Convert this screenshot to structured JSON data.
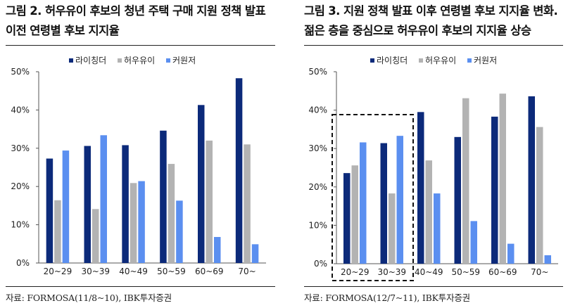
{
  "colors": {
    "series1": "#0c2a7a",
    "series2": "#b3b3b3",
    "series3": "#5b8ff0",
    "axis": "#555555",
    "rule": "#222222"
  },
  "charts": {
    "left": {
      "title_line1": "그림 2.  허우유이 후보의 청년 주택 구매 지원 정책 발표",
      "title_line2": "이전 연령별 후보 지지율",
      "source": "자료: FORMOSA(11/8~10), IBK투자증권"
    },
    "right": {
      "title_line1": "그림 3. 지원 정책 발표 이후 연령별 후보 지지율 변화.",
      "title_line2": "젊은 층을 중심으로 허우유이 후보의 지지율 상승",
      "source": "자료: FORMOSA(12/7~11), IBK투자증권"
    }
  },
  "chart_data": [
    {
      "type": "bar",
      "title": "그림 2.  허우유이 후보의 청년 주택 구매 지원 정책 발표 이전 연령별 후보 지지율",
      "categories": [
        "20~29",
        "30~39",
        "40~49",
        "50~59",
        "60~69",
        "70~"
      ],
      "series": [
        {
          "name": "라이칭더",
          "values": [
            27.3,
            30.6,
            30.8,
            34.6,
            41.3,
            48.3
          ]
        },
        {
          "name": "허우유이",
          "values": [
            16.4,
            14.1,
            20.9,
            25.9,
            32.0,
            31.0
          ]
        },
        {
          "name": "커원저",
          "values": [
            29.4,
            33.4,
            21.4,
            16.3,
            6.8,
            4.9
          ]
        }
      ],
      "ylim": [
        0,
        50
      ],
      "yticks": [
        "0%",
        "10%",
        "20%",
        "30%",
        "40%",
        "50%"
      ],
      "xlabel": "",
      "ylabel": "",
      "legend": "top-left"
    },
    {
      "type": "bar",
      "title": "그림 3. 지원 정책 발표 이후 연령별 후보 지지율 변화. 젊은 층을 중심으로 허우유이 후보의 지지율 상승",
      "categories": [
        "20~29",
        "30~39",
        "40~49",
        "50~59",
        "60~69",
        "70~"
      ],
      "series": [
        {
          "name": "라이칭더",
          "values": [
            23.6,
            31.4,
            39.5,
            33.0,
            38.3,
            43.6
          ]
        },
        {
          "name": "허우유이",
          "values": [
            25.6,
            18.3,
            26.9,
            43.1,
            44.3,
            35.6
          ]
        },
        {
          "name": "커원저",
          "values": [
            31.6,
            33.3,
            18.3,
            11.1,
            5.2,
            2.2
          ]
        }
      ],
      "ylim": [
        0,
        50
      ],
      "yticks": [
        "0%",
        "10%",
        "20%",
        "30%",
        "40%",
        "50%"
      ],
      "xlabel": "",
      "ylabel": "",
      "legend": "top-left",
      "annotation": "dashed box highlighting 20~29 and 30~39"
    }
  ]
}
